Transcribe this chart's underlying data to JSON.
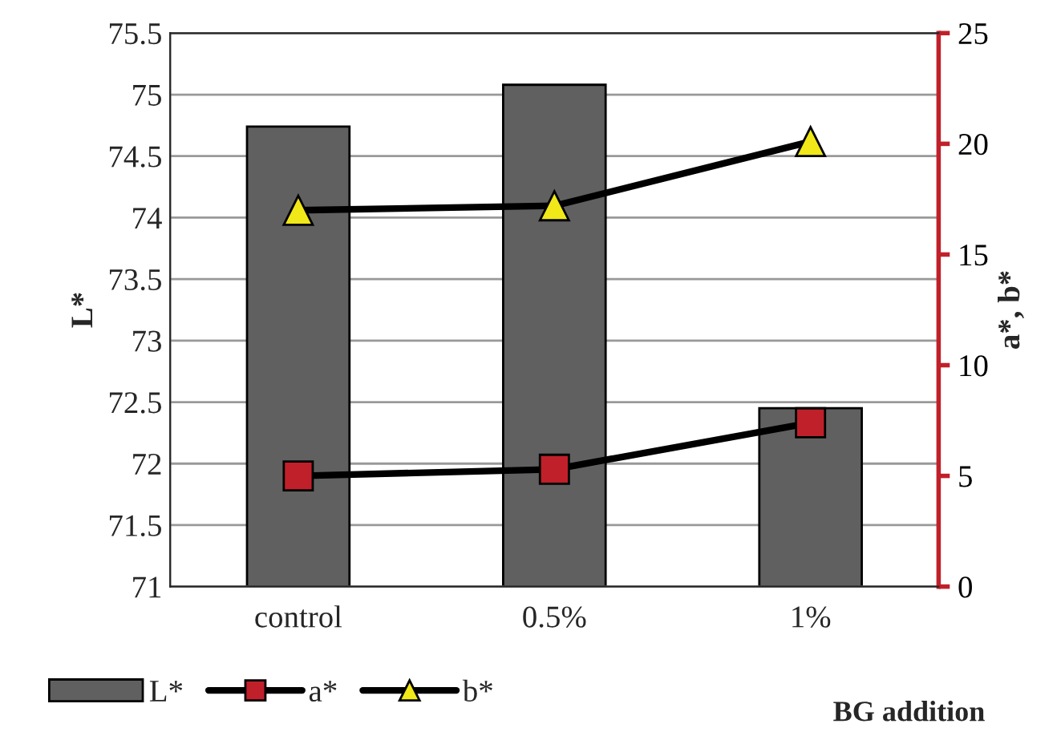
{
  "chart_data": {
    "type": "bar",
    "categories": [
      "control",
      "0.5%",
      "1%"
    ],
    "xlabel": "BG addition",
    "ylabel": "L*",
    "y2label": "a*, b*",
    "series": [
      {
        "name": "L*",
        "color": "#606060",
        "values": [
          74.74,
          75.08,
          72.45
        ]
      },
      {
        "name": "a*",
        "type": "line",
        "axis": "y2",
        "color": "#c0202a",
        "marker": "square",
        "values": [
          5.0,
          5.3,
          7.4
        ]
      },
      {
        "name": "b*",
        "type": "line",
        "axis": "y2",
        "color": "#f0e818",
        "marker": "triangle",
        "values": [
          17.0,
          17.2,
          20.1
        ]
      }
    ],
    "ylim": [
      71,
      75.5
    ],
    "yticks": [
      71,
      71.5,
      72,
      72.5,
      73,
      73.5,
      74,
      74.5,
      75,
      75.5
    ],
    "y2lim": [
      0,
      25
    ],
    "y2ticks": [
      0,
      5,
      10,
      15,
      20,
      25
    ],
    "grid": "y",
    "legend": "bottom"
  }
}
